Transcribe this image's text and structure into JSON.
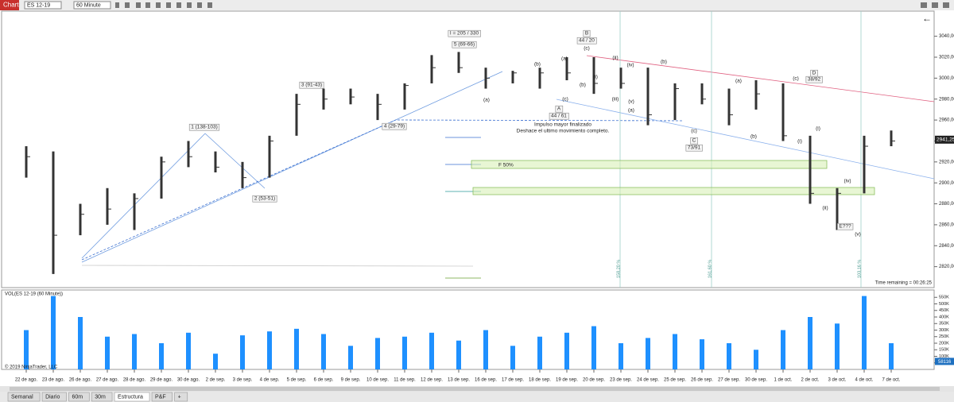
{
  "toolbar": {
    "tab": "Chart",
    "instrument": "ES 12-19",
    "interval": "60 Minute"
  },
  "chart_data": {
    "type": "ohlc",
    "x": [
      "22 de ago.",
      "23 de ago.",
      "26 de ago.",
      "27 de ago.",
      "28 de ago.",
      "29 de ago.",
      "30 de ago.",
      "2 de sep.",
      "3 de sep.",
      "4 de sep.",
      "5 de sep.",
      "6 de sep.",
      "9 de sep.",
      "10 de sep.",
      "11 de sep.",
      "12 de sep.",
      "13 de sep.",
      "16 de sep.",
      "17 de sep.",
      "18 de sep.",
      "19 de sep.",
      "20 de sep.",
      "23 de sep.",
      "24 de sep.",
      "25 de sep.",
      "26 de sep.",
      "27 de sep.",
      "30 de sep.",
      "1 de oct.",
      "2 de oct.",
      "3 de oct.",
      "4 de oct.",
      "7 de oct."
    ],
    "high": [
      2935,
      2930,
      2880,
      2895,
      2890,
      2925,
      2940,
      2930,
      2920,
      2945,
      2985,
      2990,
      2990,
      2985,
      2995,
      3022,
      3025,
      3010,
      3007,
      3010,
      3020,
      3020,
      3010,
      3010,
      2995,
      2995,
      2990,
      2998,
      2995,
      2945,
      2895,
      2945,
      2950
    ],
    "low": [
      2905,
      2813,
      2850,
      2860,
      2855,
      2885,
      2915,
      2910,
      2895,
      2905,
      2945,
      2970,
      2975,
      2960,
      2970,
      2995,
      3005,
      2990,
      2995,
      2990,
      2998,
      2985,
      2990,
      2955,
      2960,
      2975,
      2955,
      2970,
      2940,
      2880,
      2855,
      2890,
      2935
    ],
    "close": [
      2925,
      2850,
      2870,
      2875,
      2885,
      2920,
      2925,
      2915,
      2905,
      2940,
      2975,
      2980,
      2982,
      2975,
      2993,
      3010,
      3010,
      3000,
      3005,
      3005,
      3005,
      2995,
      2995,
      2965,
      2990,
      2980,
      2965,
      2985,
      2945,
      2890,
      2890,
      2935,
      2940
    ],
    "color": "#333333",
    "ylim": [
      2800,
      3064
    ],
    "yticks": [
      {
        "value": 3040,
        "label": "3040,00"
      },
      {
        "value": 3020,
        "label": "3020,00"
      },
      {
        "value": 3000,
        "label": "3000,00"
      },
      {
        "value": 2980,
        "label": "2980,00"
      },
      {
        "value": 2960,
        "label": "2960,00"
      },
      {
        "value": 2940,
        "label": "2940,00"
      },
      {
        "value": 2920,
        "label": "2920,00"
      },
      {
        "value": 2900,
        "label": "2900,00"
      },
      {
        "value": 2880,
        "label": "2880,00"
      },
      {
        "value": 2860,
        "label": "2860,00"
      },
      {
        "value": 2840,
        "label": "2840,00"
      },
      {
        "value": 2820,
        "label": "2820,00"
      }
    ],
    "last_price": {
      "value": 2941.25,
      "label": "2941,25"
    },
    "volume": {
      "title": "VOL(ES 12-19 (60 Minute))",
      "color": "#1e90ff",
      "values": [
        300000,
        560000,
        400000,
        250000,
        270000,
        200000,
        280000,
        120000,
        260000,
        290000,
        310000,
        270000,
        180000,
        240000,
        250000,
        280000,
        220000,
        300000,
        180000,
        250000,
        280000,
        330000,
        200000,
        240000,
        270000,
        230000,
        200000,
        150000,
        300000,
        400000,
        350000,
        560000,
        200000
      ],
      "ylim": [
        0,
        600000
      ],
      "yticks": [
        {
          "value": 550000,
          "label": "550K"
        },
        {
          "value": 500000,
          "label": "500K"
        },
        {
          "value": 450000,
          "label": "450K"
        },
        {
          "value": 400000,
          "label": "400K"
        },
        {
          "value": 350000,
          "label": "350K"
        },
        {
          "value": 300000,
          "label": "300K"
        },
        {
          "value": 250000,
          "label": "250K"
        },
        {
          "value": 200000,
          "label": "200K"
        },
        {
          "value": 150000,
          "label": "150K"
        },
        {
          "value": 100000,
          "label": "100K"
        },
        50000
      ],
      "last": 58116
    },
    "boxed_labels": [
      "1 (138-103)",
      "2 (53-51)",
      "3 (91-43)",
      "4 (29-79)",
      "I = 205 / 330",
      "5 (69-66)",
      "B",
      "44 / 20",
      "A",
      "44 / 61",
      "C",
      "73/91",
      "D",
      "38/92",
      "E???"
    ],
    "notes": [
      "Impulso mayor finalizado",
      "Deshace el ultimo movimiento completo.",
      "F 50%"
    ],
    "wave_labels": [
      "(a)",
      "(b)",
      "(a)",
      "(c)",
      "(b)",
      "(c)",
      "(i)",
      "(ii)",
      "(iii)",
      "(iv)",
      "(v)",
      "(a)",
      "(b)",
      "(c)",
      "(a)",
      "(b)",
      "(c)",
      "(i)",
      "(i)",
      "(ii)",
      "(iv)",
      "(v)"
    ],
    "level_labels": [
      "158,20 %",
      "161,60 %",
      "103,16 %"
    ],
    "time_remaining": "Time remaining = 00:26:25",
    "copyright": "© 2019 NinjaTrader, LLC"
  },
  "tabs": [
    "Semanal",
    "Diario",
    "60m",
    "30m",
    "Estructura",
    "P&F",
    "+"
  ]
}
